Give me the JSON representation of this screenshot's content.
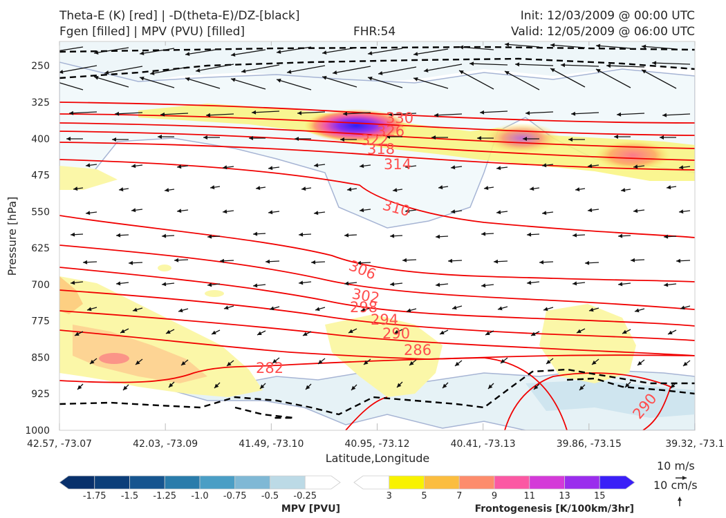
{
  "header": {
    "title_left_1": "Theta-E (K) [red] | -D(theta-E)/DZ-[black]",
    "title_left_2": "Fgen [filled] | MPV (PVU) [filled]",
    "fhr": "FHR:54",
    "init": "Init: 12/03/2009 @ 00:00 UTC",
    "valid": "Valid: 12/05/2009 @ 06:00 UTC"
  },
  "chart_data": {
    "type": "cross-section",
    "xlabel": "Latitude,Longitude",
    "ylabel": "Pressure [hPa]",
    "x_ticks": [
      "42.57, -73.07",
      "42.03, -73.09",
      "41.49, -73.10",
      "40.95, -73.12",
      "40.41, -73.13",
      "39.86, -73.15",
      "39.32, -73.1"
    ],
    "y_ticks": [
      250,
      325,
      400,
      475,
      550,
      625,
      700,
      775,
      850,
      925,
      1000
    ],
    "ylim": [
      1000,
      200
    ],
    "theta_e_contour_labels": [
      "330",
      "326",
      "322",
      "318",
      "314",
      "310",
      "306",
      "302",
      "298",
      "294",
      "290",
      "286",
      "282",
      "290"
    ],
    "mpv_colorbar": {
      "title": "MPV [PVU]",
      "labels": [
        "-1.75",
        "-1.5",
        "-1.25",
        "-1.0",
        "-0.75",
        "-0.5",
        "-0.25"
      ],
      "colors": [
        "#08306b",
        "#0c3e79",
        "#16558f",
        "#2a7cab",
        "#4a9ec5",
        "#7fb8d5",
        "#bcdae6",
        "#ffffff"
      ]
    },
    "fgen_colorbar": {
      "title": "Frontogenesis [K/100km/3hr]",
      "labels": [
        "3",
        "5",
        "7",
        "9",
        "11",
        "13",
        "15"
      ],
      "colors": [
        "#ffffff",
        "#f8f200",
        "#fbbd3f",
        "#fd8c6c",
        "#fb58a3",
        "#d43ad8",
        "#9a2ded",
        "#3a1ff7"
      ]
    },
    "vector_keys": [
      "10 m/s",
      "10 cm/s"
    ]
  }
}
